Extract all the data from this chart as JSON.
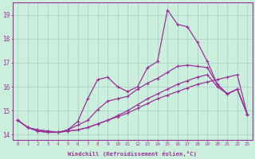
{
  "xlabel": "Windchill (Refroidissement éolien,°C)",
  "ylabel": "",
  "bg_color": "#cceedd",
  "line_color": "#993399",
  "grid_color": "#aacccc",
  "xlim": [
    -0.5,
    23.5
  ],
  "ylim": [
    13.8,
    19.5
  ],
  "xticks": [
    0,
    1,
    2,
    3,
    4,
    5,
    6,
    7,
    8,
    9,
    10,
    11,
    12,
    13,
    14,
    15,
    16,
    17,
    18,
    19,
    20,
    21,
    22,
    23
  ],
  "yticks": [
    14,
    15,
    16,
    17,
    18,
    19
  ],
  "line1": [
    14.6,
    14.3,
    14.15,
    14.1,
    14.1,
    14.15,
    14.2,
    14.3,
    14.45,
    14.6,
    14.75,
    14.9,
    15.1,
    15.3,
    15.5,
    15.65,
    15.8,
    15.95,
    16.1,
    16.2,
    16.3,
    16.4,
    16.5,
    14.85
  ],
  "line2": [
    14.6,
    14.3,
    14.15,
    14.1,
    14.1,
    14.15,
    14.2,
    14.3,
    14.45,
    14.6,
    14.8,
    15.0,
    15.25,
    15.5,
    15.7,
    15.9,
    16.1,
    16.25,
    16.4,
    16.5,
    16.0,
    15.7,
    15.9,
    14.85
  ],
  "line3": [
    14.6,
    14.3,
    14.2,
    14.15,
    14.1,
    14.2,
    14.4,
    14.6,
    15.05,
    15.4,
    15.5,
    15.6,
    15.9,
    16.15,
    16.35,
    16.6,
    16.85,
    16.9,
    16.85,
    16.8,
    16.1,
    15.7,
    15.9,
    14.85
  ],
  "line4": [
    14.6,
    14.3,
    14.2,
    14.15,
    14.1,
    14.2,
    14.55,
    15.5,
    16.3,
    16.4,
    16.0,
    15.8,
    16.0,
    16.8,
    17.05,
    19.2,
    18.6,
    18.5,
    17.85,
    17.05,
    16.1,
    15.7,
    15.9,
    14.85
  ]
}
